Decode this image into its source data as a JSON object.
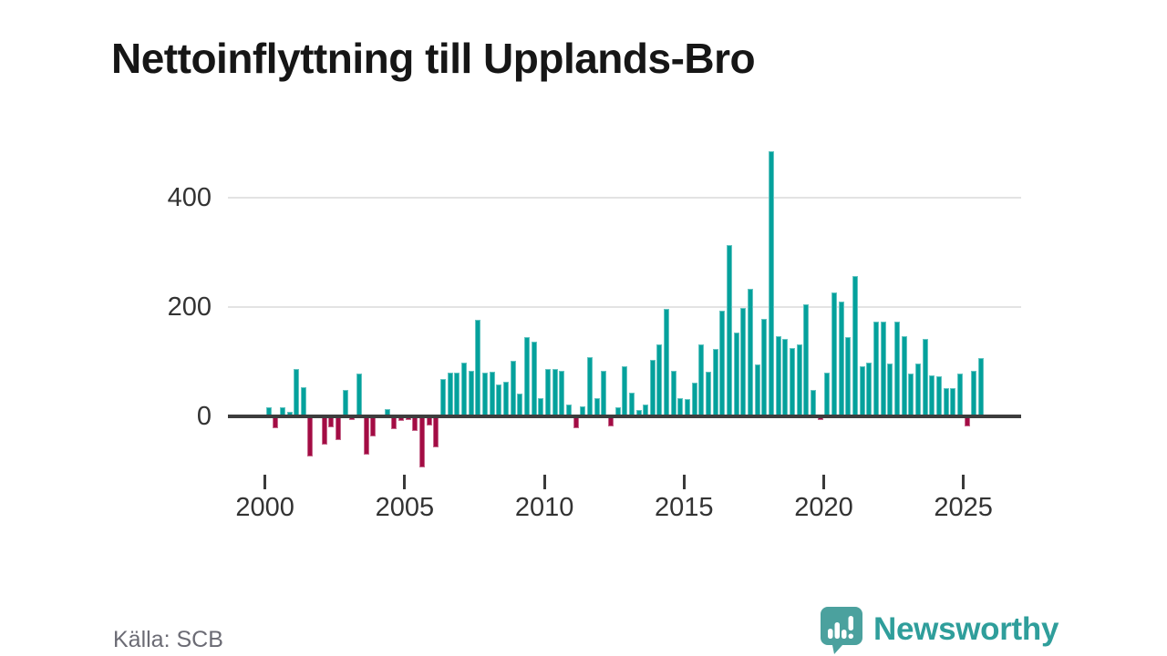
{
  "title": "Nettoinflyttning till Upplands-Bro",
  "source_note": "Källa: SCB",
  "branding": {
    "name": "Newsworthy",
    "icon": "newsworthy-speech-bubble-bar-chart-icon",
    "wordmark_color": "#2f9e9b",
    "bubble_color": "#4ba19e"
  },
  "chart_data": {
    "type": "bar",
    "title": "Nettoinflyttning till Upplands-Bro",
    "frequency": "quarterly",
    "x_start": "2000Q1",
    "x_end": "2025Q3",
    "x_tick_labels": [
      "2000",
      "2005",
      "2010",
      "2015",
      "2020",
      "2025"
    ],
    "y_tick_labels": [
      "400",
      "200",
      "0"
    ],
    "y_ticks": [
      400,
      200,
      0
    ],
    "ylim": [
      -110,
      500
    ],
    "grid": "horizontal",
    "positive_color": "#04a19c",
    "negative_color": "#a30c44",
    "values": [
      16,
      -22,
      17,
      8,
      87,
      53,
      -73,
      4,
      -52,
      -20,
      -43,
      49,
      -7,
      78,
      -70,
      -37,
      4,
      14,
      -24,
      -8,
      -6,
      -26,
      -94,
      -17,
      -56,
      68,
      80,
      80,
      98,
      84,
      177,
      80,
      82,
      59,
      64,
      102,
      42,
      145,
      136,
      34,
      87,
      87,
      83,
      22,
      -21,
      19,
      109,
      34,
      83,
      -19,
      17,
      91,
      44,
      12,
      21,
      103,
      131,
      197,
      83,
      33,
      31,
      61,
      131,
      82,
      124,
      194,
      313,
      153,
      198,
      234,
      95,
      178,
      485,
      147,
      142,
      125,
      131,
      205,
      48,
      -7,
      80,
      226,
      210,
      145,
      257,
      91,
      98,
      173,
      173,
      97,
      173,
      146,
      78,
      96,
      141,
      75,
      74,
      52,
      52,
      79,
      -18,
      84,
      106
    ]
  }
}
